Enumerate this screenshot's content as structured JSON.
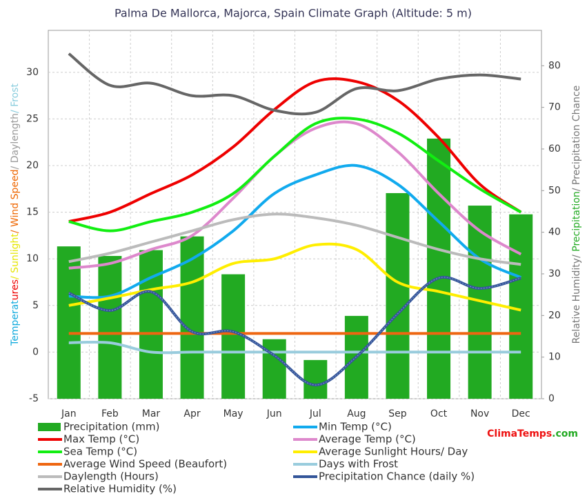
{
  "chart_data": {
    "type": "combo",
    "title": "Palma De Mallorca, Majorca, Spain Climate Graph (Altitude: 5 m)",
    "y_label_parts": [
      {
        "text": "Temperat",
        "color": "#11aadd"
      },
      {
        "text": "ures",
        "color": "#ee0000"
      },
      {
        "text": "/ Sunlight",
        "color": "#e6e600"
      },
      {
        "text": "/ Wind Speed",
        "color": "#ee6600"
      },
      {
        "text": "/ Daylength",
        "color": "#999999"
      },
      {
        "text": "/ Frost",
        "color": "#88ccdd"
      }
    ],
    "y2_label_parts": [
      {
        "text": "Relative Humidity/ ",
        "color": "#777777"
      },
      {
        "text": "Precipitation",
        "color": "#22aa22"
      },
      {
        "text": "/ Precipitation Chance",
        "color": "#777777"
      }
    ],
    "brand_parts": [
      {
        "text": "ClimaTemps",
        "color": "#ee1111"
      },
      {
        "text": ".com",
        "color": "#22aa22"
      }
    ],
    "categories": [
      "Jan",
      "Feb",
      "Mar",
      "Apr",
      "May",
      "Jun",
      "Jul",
      "Aug",
      "Sep",
      "Oct",
      "Nov",
      "Dec"
    ],
    "ylim": [
      -5,
      34.5
    ],
    "yticks": [
      -5,
      0,
      5,
      10,
      15,
      20,
      25,
      30
    ],
    "y2lim": [
      0,
      88.5
    ],
    "y2ticks": [
      0,
      10,
      20,
      30,
      40,
      50,
      60,
      70,
      80
    ],
    "grid": true,
    "series": [
      {
        "name": "Precipitation (mm)",
        "kind": "bar",
        "axis": "y2",
        "color": "#22aa22",
        "values": [
          36.6,
          34.3,
          35.7,
          39,
          29.9,
          14.3,
          9.3,
          19.9,
          49.4,
          62.5,
          46.4,
          44.3
        ]
      },
      {
        "name": "Min Temp (°C)",
        "kind": "line",
        "color": "#11aaee",
        "values": [
          6,
          6,
          8,
          10,
          13,
          17,
          19,
          20,
          18,
          14,
          10,
          8
        ]
      },
      {
        "name": "Max Temp (°C)",
        "kind": "line",
        "color": "#ee0000",
        "values": [
          14,
          15,
          17,
          19,
          22,
          26,
          29,
          29,
          27,
          23,
          18,
          15
        ]
      },
      {
        "name": "Average Temp (°C)",
        "kind": "line",
        "color": "#dd88cc",
        "values": [
          9,
          9.5,
          11,
          12.5,
          16.5,
          21,
          24,
          24.5,
          21.5,
          17,
          13,
          10.5
        ]
      },
      {
        "name": "Sea Temp (°C)",
        "kind": "line",
        "color": "#11ee11",
        "values": [
          14,
          13,
          14,
          15,
          17,
          21,
          24.5,
          25,
          23.5,
          20.5,
          17.5,
          15
        ]
      },
      {
        "name": "Average Sunlight Hours/ Day",
        "kind": "line",
        "color": "#ffee00",
        "values": [
          5,
          5.8,
          6.7,
          7.5,
          9.5,
          10,
          11.5,
          11,
          7.5,
          6.5,
          5.5,
          4.5
        ]
      },
      {
        "name": "Average Wind Speed (Beaufort)",
        "kind": "line",
        "color": "#ee6611",
        "values": [
          2,
          2,
          2,
          2,
          2,
          2,
          2,
          2,
          2,
          2,
          2,
          2
        ]
      },
      {
        "name": "Days with Frost",
        "kind": "line",
        "color": "#99ccdd",
        "values": [
          1,
          1,
          0,
          0,
          0,
          0,
          0,
          0,
          0,
          0,
          0,
          0
        ]
      },
      {
        "name": "Daylength (Hours)",
        "kind": "line",
        "color": "#bbbbbb",
        "values": [
          9.7,
          10.6,
          11.8,
          13,
          14.2,
          14.8,
          14.4,
          13.6,
          12.3,
          11,
          10,
          9.4
        ]
      },
      {
        "name": "Precipitation Chance (daily %)",
        "kind": "line",
        "axis": "y2",
        "color": "#335599",
        "values": [
          25.4,
          21.2,
          25.7,
          16.1,
          16.1,
          10.4,
          3.3,
          10.1,
          20.4,
          29,
          26.5,
          29
        ]
      },
      {
        "name": "Relative Humidity (%)",
        "kind": "line",
        "axis": "y2",
        "color": "#666666",
        "values": [
          82.9,
          75.3,
          75.8,
          72.8,
          72.8,
          69.3,
          68.8,
          74.5,
          74,
          76.8,
          77.8,
          76.8
        ]
      }
    ]
  }
}
